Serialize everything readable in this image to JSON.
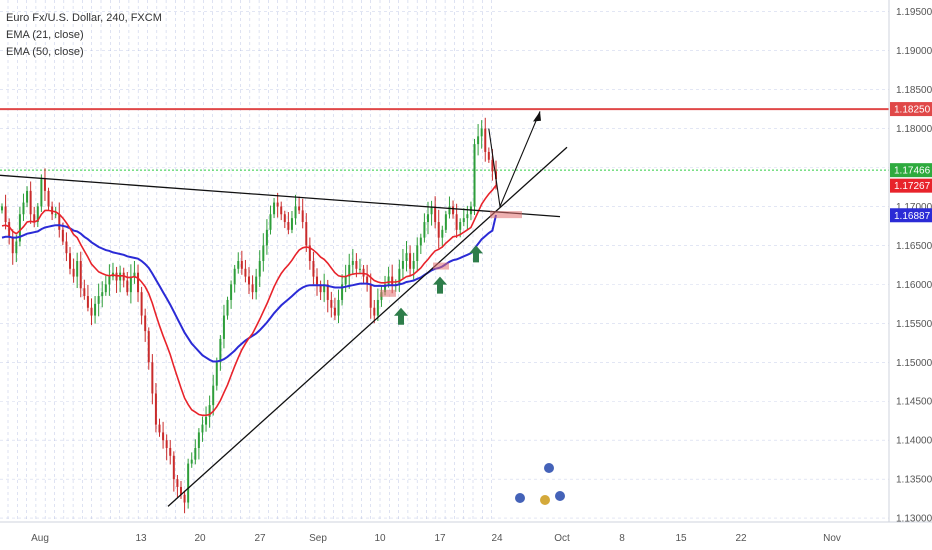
{
  "header": {
    "symbol_line": "Euro Fx/U.S. Dollar, 240, FXCM",
    "ema21_label": "EMA (21, close)",
    "ema50_label": "EMA (50, close)"
  },
  "colors": {
    "ema21": "#e8232b",
    "ema50": "#2b2bd6",
    "up_candle": "#2e9e3a",
    "down_candle": "#c92b2b",
    "resistance": "#e04848",
    "dotted_green": "#2ecc40",
    "grid": "#9aa8d8",
    "arrow_green": "#2e7d4a"
  },
  "chart_data": {
    "type": "candlestick",
    "y_ticks": [
      "1.13000",
      "1.13500",
      "1.14000",
      "1.14500",
      "1.15000",
      "1.15500",
      "1.16000",
      "1.16500",
      "1.17000",
      "1.17500",
      "1.18000",
      "1.18500",
      "1.19000",
      "1.19500"
    ],
    "y_range": [
      1.1295,
      1.1965
    ],
    "x_ticks": [
      "Aug",
      "13",
      "20",
      "27",
      "Sep",
      "10",
      "17",
      "24",
      "Oct",
      "8",
      "15",
      "22",
      "Nov"
    ],
    "price_tags": [
      {
        "label": "1.18250",
        "value": 1.1825,
        "color": "#e04848"
      },
      {
        "label": "1.17466",
        "value": 1.17466,
        "color": "#2eaa3e"
      },
      {
        "label": "1.17267",
        "value": 1.17267,
        "color": "#e8232b"
      },
      {
        "label": "1.16887",
        "value": 1.16887,
        "color": "#2b2bd6"
      }
    ],
    "resistance_level": 1.1825,
    "green_level": 1.17466,
    "closes": [
      1.17,
      1.168,
      1.166,
      1.164,
      1.1655,
      1.169,
      1.1705,
      1.172,
      1.169,
      1.168,
      1.17,
      1.1735,
      1.172,
      1.17,
      1.169,
      1.169,
      1.167,
      1.1655,
      1.164,
      1.162,
      1.161,
      1.163,
      1.1595,
      1.1585,
      1.157,
      1.156,
      1.1575,
      1.1585,
      1.159,
      1.16,
      1.161,
      1.1615,
      1.1605,
      1.1615,
      1.1605,
      1.159,
      1.161,
      1.1615,
      1.159,
      1.156,
      1.154,
      1.15,
      1.146,
      1.142,
      1.141,
      1.14,
      1.139,
      1.138,
      1.135,
      1.134,
      1.133,
      1.132,
      1.137,
      1.1375,
      1.139,
      1.141,
      1.142,
      1.143,
      1.1445,
      1.147,
      1.15,
      1.153,
      1.156,
      1.158,
      1.16,
      1.162,
      1.163,
      1.162,
      1.161,
      1.16,
      1.159,
      1.161,
      1.163,
      1.165,
      1.167,
      1.169,
      1.1705,
      1.17,
      1.169,
      1.168,
      1.167,
      1.1685,
      1.17,
      1.1695,
      1.168,
      1.165,
      1.163,
      1.161,
      1.16,
      1.159,
      1.16,
      1.158,
      1.157,
      1.156,
      1.158,
      1.16,
      1.161,
      1.1625,
      1.163,
      1.162,
      1.162,
      1.161,
      1.16,
      1.157,
      1.156,
      1.158,
      1.159,
      1.16,
      1.161,
      1.16,
      1.16,
      1.162,
      1.163,
      1.164,
      1.162,
      1.163,
      1.165,
      1.166,
      1.168,
      1.169,
      1.17,
      1.168,
      1.166,
      1.167,
      1.169,
      1.17,
      1.169,
      1.167,
      1.168,
      1.1685,
      1.169,
      1.17,
      1.178,
      1.179,
      1.18,
      1.177,
      1.176,
      1.1745,
      1.1735
    ],
    "ema21": [
      1.1675,
      1.1676,
      1.1674,
      1.1668,
      1.1665,
      1.1669,
      1.1674,
      1.168,
      1.1681,
      1.168,
      1.1682,
      1.169,
      1.1695,
      1.1695,
      1.1694,
      1.1693,
      1.169,
      1.1685,
      1.1679,
      1.1672,
      1.1664,
      1.166,
      1.1651,
      1.1643,
      1.1635,
      1.1626,
      1.1621,
      1.1616,
      1.1614,
      1.1612,
      1.1611,
      1.1612,
      1.1611,
      1.1611,
      1.1611,
      1.1609,
      1.1609,
      1.161,
      1.1608,
      1.1603,
      1.1597,
      1.1588,
      1.1576,
      1.1561,
      1.1547,
      1.1534,
      1.1522,
      1.151,
      1.1495,
      1.1481,
      1.1467,
      1.1454,
      1.1446,
      1.1439,
      1.1436,
      1.1433,
      1.1432,
      1.1432,
      1.1433,
      1.1437,
      1.1443,
      1.1451,
      1.1461,
      1.1471,
      1.1483,
      1.1495,
      1.1506,
      1.1516,
      1.1524,
      1.1531,
      1.1537,
      1.1546,
      1.1555,
      1.1565,
      1.1575,
      1.1586,
      1.1597,
      1.1606,
      1.1614,
      1.162,
      1.1625,
      1.1631,
      1.1638,
      1.1644,
      1.1647,
      1.1648,
      1.1647,
      1.1644,
      1.164,
      1.1635,
      1.1632,
      1.1627,
      1.1621,
      1.1615,
      1.1611,
      1.161,
      1.161,
      1.1612,
      1.1613,
      1.1614,
      1.1614,
      1.1614,
      1.1613,
      1.1609,
      1.1605,
      1.1603,
      1.1602,
      1.1602,
      1.1603,
      1.1603,
      1.1603,
      1.1604,
      1.1607,
      1.161,
      1.1611,
      1.1613,
      1.1617,
      1.1621,
      1.1627,
      1.1632,
      1.1638,
      1.1643,
      1.1645,
      1.1648,
      1.1653,
      1.1657,
      1.1661,
      1.1662,
      1.1664,
      1.1667,
      1.167,
      1.1673,
      1.1683,
      1.1693,
      1.1703,
      1.171,
      1.1716,
      1.1721,
      1.1727
    ],
    "ema50": [
      1.166,
      1.1661,
      1.1661,
      1.166,
      1.166,
      1.1661,
      1.1663,
      1.1665,
      1.1666,
      1.1667,
      1.1668,
      1.1671,
      1.1673,
      1.1674,
      1.1675,
      1.1676,
      1.1676,
      1.1675,
      1.1674,
      1.1672,
      1.1669,
      1.1668,
      1.1665,
      1.1661,
      1.1658,
      1.1654,
      1.1651,
      1.1648,
      1.1646,
      1.1644,
      1.1643,
      1.1641,
      1.164,
      1.1639,
      1.1638,
      1.1636,
      1.1635,
      1.1634,
      1.1633,
      1.163,
      1.1626,
      1.1621,
      1.1614,
      1.1606,
      1.1598,
      1.159,
      1.1582,
      1.1574,
      1.1565,
      1.1556,
      1.1547,
      1.1538,
      1.1531,
      1.1524,
      1.1519,
      1.1514,
      1.1509,
      1.1506,
      1.1503,
      1.1501,
      1.1501,
      1.1502,
      1.1504,
      1.1507,
      1.1511,
      1.1515,
      1.152,
      1.1524,
      1.1528,
      1.1531,
      1.1534,
      1.1537,
      1.1541,
      1.1546,
      1.1551,
      1.1557,
      1.1563,
      1.1568,
      1.1573,
      1.1577,
      1.1581,
      1.1585,
      1.1589,
      1.1593,
      1.1596,
      1.1598,
      1.1599,
      1.1599,
      1.1599,
      1.1599,
      1.1599,
      1.1598,
      1.1597,
      1.1596,
      1.1596,
      1.1596,
      1.1597,
      1.1598,
      1.1599,
      1.16,
      1.1601,
      1.1601,
      1.1601,
      1.16,
      1.1598,
      1.1598,
      1.1598,
      1.1598,
      1.1599,
      1.1599,
      1.1599,
      1.16,
      1.1601,
      1.1603,
      1.1604,
      1.1605,
      1.1607,
      1.1609,
      1.1612,
      1.1615,
      1.1618,
      1.162,
      1.1621,
      1.1623,
      1.1626,
      1.1629,
      1.1631,
      1.1632,
      1.1634,
      1.1636,
      1.1638,
      1.164,
      1.1646,
      1.1652,
      1.1658,
      1.1662,
      1.1666,
      1.1669,
      1.1689
    ]
  }
}
